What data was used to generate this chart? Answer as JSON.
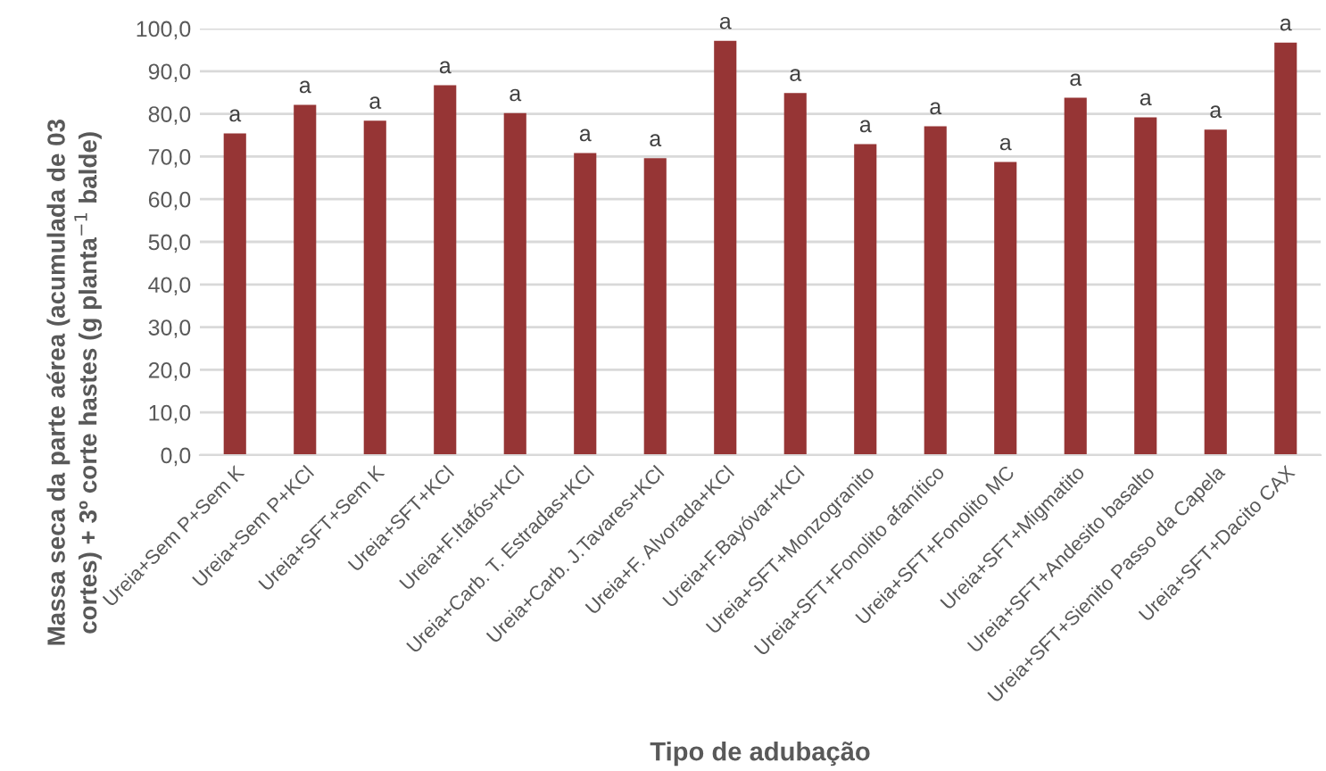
{
  "chart_data": {
    "type": "bar",
    "xlabel": "Tipo de adubação",
    "ylabel": "Massa seca da parte aérea (acumulada de 03\ncortes) + 3º corte hastes (g planta$^{−1}$ balde)",
    "categories": [
      "Ureia+Sem P+Sem K",
      "Ureia+Sem P+KCl",
      "Ureia+SFT+Sem K",
      "Ureia+SFT+KCl",
      "Ureia+F.Itafós+KCl",
      "Ureia+Carb. T. Estradas+KCl",
      "Ureia+Carb. J.Tavares+KCl",
      "Ureia+F. Alvorada+KCl",
      "Ureia+F.Bayóvar+KCl",
      "Ureia+SFT+Monzogranito",
      "Ureia+SFT+Fonolito afanítico",
      "Ureia+SFT+Fonolito MC",
      "Ureia+SFT+Migmatito",
      "Ureia+SFT+Andesito basalto",
      "Ureia+SFT+Sienito Passo da Capela",
      "Ureia+SFT+Dacito CAX"
    ],
    "values": [
      75.4,
      82.1,
      78.4,
      86.7,
      80.2,
      70.8,
      69.6,
      97.1,
      84.9,
      72.9,
      77.1,
      68.7,
      83.8,
      79.2,
      76.3,
      96.7
    ],
    "value_labels": [
      "a",
      "a",
      "a",
      "a",
      "a",
      "a",
      "a",
      "a",
      "a",
      "a",
      "a",
      "a",
      "a",
      "a",
      "a",
      "a"
    ],
    "color": "#963535",
    "ylim": [
      0,
      100
    ],
    "yticks": [
      {
        "value": 0,
        "label": "0,0"
      },
      {
        "value": 10,
        "label": "10,0"
      },
      {
        "value": 20,
        "label": "20,0"
      },
      {
        "value": 30,
        "label": "30,0"
      },
      {
        "value": 40,
        "label": "40,0"
      },
      {
        "value": 50,
        "label": "50,0"
      },
      {
        "value": 60,
        "label": "60,0"
      },
      {
        "value": 70,
        "label": "70,0"
      },
      {
        "value": 80,
        "label": "80,0"
      },
      {
        "value": 90,
        "label": "90,0"
      },
      {
        "value": 100,
        "label": "100,0"
      }
    ],
    "grid": "y"
  }
}
